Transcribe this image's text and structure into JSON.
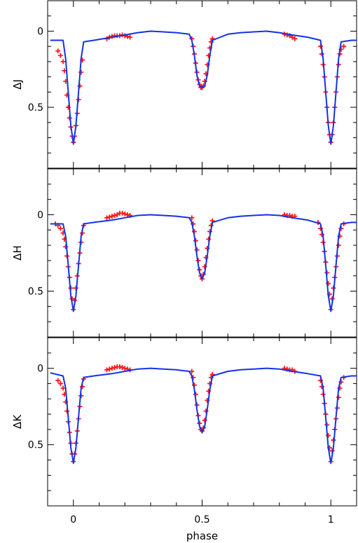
{
  "chart_data": [
    {
      "type": "line",
      "panel": "J",
      "ylabel": "ΔJ",
      "xlim": [
        -0.1,
        1.1
      ],
      "ylim": [
        0.9,
        -0.2
      ],
      "y_inverted": true,
      "yticks": [
        0,
        0.5
      ],
      "ytick_labels": [
        "0",
        "0.5"
      ],
      "minima": {
        "primary_depth": 0.74,
        "secondary_depth": 0.37
      },
      "model_color": "#1432e6",
      "data_color": "#ff1a1a",
      "series": [
        {
          "kind": "model-line",
          "x": [
            -0.09,
            -0.04,
            -0.03,
            -0.02,
            -0.01,
            0.0,
            0.01,
            0.02,
            0.03,
            0.04,
            0.08,
            0.15,
            0.2,
            0.25,
            0.3,
            0.35,
            0.4,
            0.45,
            0.46,
            0.47,
            0.48,
            0.49,
            0.5,
            0.51,
            0.52,
            0.53,
            0.54,
            0.6,
            0.65,
            0.7,
            0.75,
            0.8,
            0.85,
            0.91,
            0.96,
            0.97,
            0.98,
            0.99,
            1.0,
            1.01,
            1.02,
            1.03,
            1.04,
            1.08,
            1.1
          ],
          "y": [
            0.06,
            0.06,
            0.18,
            0.4,
            0.62,
            0.74,
            0.62,
            0.4,
            0.18,
            0.07,
            0.06,
            0.04,
            0.025,
            0.01,
            0.0,
            0.005,
            0.01,
            0.02,
            0.06,
            0.16,
            0.29,
            0.36,
            0.37,
            0.36,
            0.29,
            0.16,
            0.06,
            0.02,
            0.01,
            0.005,
            0.0,
            0.01,
            0.025,
            0.04,
            0.06,
            0.18,
            0.4,
            0.62,
            0.74,
            0.62,
            0.4,
            0.18,
            0.07,
            0.06,
            0.06
          ]
        },
        {
          "kind": "data-points",
          "x": [
            -0.06,
            -0.05,
            -0.04,
            -0.035,
            -0.03,
            -0.025,
            -0.02,
            -0.015,
            -0.01,
            -0.005,
            0.0,
            0.005,
            0.01,
            0.015,
            0.02,
            0.025,
            0.03,
            0.035,
            0.13,
            0.14,
            0.15,
            0.16,
            0.17,
            0.18,
            0.19,
            0.2,
            0.21,
            0.22,
            0.46,
            0.465,
            0.47,
            0.475,
            0.48,
            0.485,
            0.49,
            0.495,
            0.5,
            0.505,
            0.51,
            0.515,
            0.52,
            0.525,
            0.53,
            0.535,
            0.54,
            0.82,
            0.83,
            0.84,
            0.85,
            0.86,
            0.96,
            0.965,
            0.97,
            0.975,
            0.98,
            0.985,
            0.99,
            0.995,
            1.0,
            1.005,
            1.01,
            1.015,
            1.02,
            1.025,
            1.03,
            1.035,
            1.04,
            1.05
          ],
          "y": [
            0.13,
            0.16,
            0.2,
            0.26,
            0.33,
            0.42,
            0.5,
            0.57,
            0.63,
            0.69,
            0.73,
            0.69,
            0.62,
            0.54,
            0.45,
            0.36,
            0.27,
            0.19,
            0.05,
            0.04,
            0.035,
            0.03,
            0.03,
            0.03,
            0.025,
            0.03,
            0.035,
            0.04,
            0.05,
            0.1,
            0.15,
            0.21,
            0.27,
            0.32,
            0.35,
            0.37,
            0.37,
            0.36,
            0.33,
            0.28,
            0.22,
            0.16,
            0.11,
            0.07,
            0.05,
            0.02,
            0.025,
            0.03,
            0.04,
            0.05,
            0.1,
            0.15,
            0.22,
            0.3,
            0.4,
            0.5,
            0.6,
            0.68,
            0.73,
            0.68,
            0.6,
            0.5,
            0.4,
            0.3,
            0.22,
            0.15,
            0.12,
            0.1
          ]
        }
      ]
    },
    {
      "type": "line",
      "panel": "H",
      "ylabel": "ΔH",
      "xlim": [
        -0.1,
        1.1
      ],
      "ylim": [
        0.8,
        -0.3
      ],
      "y_inverted": true,
      "yticks": [
        0,
        0.5
      ],
      "ytick_labels": [
        "0",
        "0.5"
      ],
      "minima": {
        "primary_depth": 0.63,
        "secondary_depth": 0.42
      },
      "model_color": "#1432e6",
      "data_color": "#ff1a1a",
      "series": [
        {
          "kind": "model-line",
          "x": [
            -0.09,
            -0.04,
            -0.03,
            -0.02,
            -0.01,
            0.0,
            0.01,
            0.02,
            0.03,
            0.04,
            0.08,
            0.15,
            0.2,
            0.25,
            0.3,
            0.35,
            0.4,
            0.45,
            0.46,
            0.47,
            0.48,
            0.49,
            0.5,
            0.51,
            0.52,
            0.53,
            0.54,
            0.6,
            0.65,
            0.7,
            0.75,
            0.8,
            0.85,
            0.91,
            0.96,
            0.97,
            0.98,
            0.99,
            1.0,
            1.01,
            1.02,
            1.03,
            1.04,
            1.08,
            1.1
          ],
          "y": [
            0.06,
            0.06,
            0.14,
            0.33,
            0.53,
            0.63,
            0.53,
            0.33,
            0.14,
            0.06,
            0.05,
            0.035,
            0.02,
            0.005,
            0.0,
            0.005,
            0.01,
            0.02,
            0.05,
            0.14,
            0.27,
            0.38,
            0.42,
            0.38,
            0.27,
            0.14,
            0.05,
            0.02,
            0.01,
            0.005,
            0.0,
            0.005,
            0.02,
            0.035,
            0.06,
            0.14,
            0.33,
            0.53,
            0.63,
            0.53,
            0.33,
            0.14,
            0.06,
            0.05,
            0.05
          ]
        },
        {
          "kind": "data-points",
          "x": [
            -0.07,
            -0.06,
            -0.05,
            -0.04,
            -0.035,
            -0.03,
            -0.025,
            -0.02,
            -0.015,
            -0.01,
            -0.005,
            0.0,
            0.005,
            0.01,
            0.015,
            0.02,
            0.025,
            0.03,
            0.035,
            0.04,
            0.13,
            0.14,
            0.15,
            0.16,
            0.17,
            0.18,
            0.19,
            0.2,
            0.21,
            0.22,
            0.46,
            0.465,
            0.47,
            0.475,
            0.48,
            0.485,
            0.49,
            0.495,
            0.5,
            0.505,
            0.51,
            0.515,
            0.52,
            0.525,
            0.53,
            0.535,
            0.54,
            0.82,
            0.83,
            0.84,
            0.85,
            0.86,
            0.95,
            0.96,
            0.965,
            0.97,
            0.975,
            0.98,
            0.985,
            0.99,
            0.995,
            1.0,
            1.005,
            1.01,
            1.015,
            1.02,
            1.025,
            1.03,
            1.035,
            1.04,
            1.05
          ],
          "y": [
            0.06,
            0.07,
            0.09,
            0.12,
            0.16,
            0.21,
            0.27,
            0.34,
            0.41,
            0.48,
            0.55,
            0.62,
            0.56,
            0.48,
            0.4,
            0.32,
            0.25,
            0.18,
            0.12,
            0.07,
            0.02,
            0.015,
            0.01,
            0.005,
            0.0,
            -0.01,
            -0.01,
            -0.005,
            0.0,
            0.005,
            0.02,
            0.06,
            0.11,
            0.17,
            0.23,
            0.3,
            0.36,
            0.4,
            0.42,
            0.39,
            0.34,
            0.28,
            0.22,
            0.16,
            0.11,
            0.07,
            0.04,
            0.0,
            0.005,
            0.005,
            0.01,
            0.01,
            0.05,
            0.09,
            0.13,
            0.18,
            0.24,
            0.31,
            0.38,
            0.45,
            0.52,
            0.62,
            0.55,
            0.48,
            0.41,
            0.34,
            0.27,
            0.2,
            0.14,
            0.09,
            0.06
          ]
        }
      ]
    },
    {
      "type": "line",
      "panel": "K",
      "ylabel": "ΔK",
      "xlabel": "phase",
      "xlim": [
        -0.1,
        1.1
      ],
      "ylim": [
        0.9,
        -0.2
      ],
      "y_inverted": true,
      "xticks": [
        0,
        0.5,
        1
      ],
      "xtick_labels": [
        "0",
        "0.5",
        "1"
      ],
      "yticks": [
        0,
        0.5
      ],
      "ytick_labels": [
        "0",
        "0.5"
      ],
      "minima": {
        "primary_depth": 0.62,
        "secondary_depth": 0.42
      },
      "model_color": "#1432e6",
      "data_color": "#ff1a1a",
      "series": [
        {
          "kind": "model-line",
          "x": [
            -0.09,
            -0.04,
            -0.03,
            -0.02,
            -0.01,
            0.0,
            0.01,
            0.02,
            0.03,
            0.04,
            0.08,
            0.15,
            0.2,
            0.25,
            0.3,
            0.35,
            0.4,
            0.45,
            0.46,
            0.47,
            0.48,
            0.49,
            0.5,
            0.51,
            0.52,
            0.53,
            0.54,
            0.6,
            0.65,
            0.7,
            0.75,
            0.8,
            0.85,
            0.91,
            0.96,
            0.97,
            0.98,
            0.99,
            1.0,
            1.01,
            1.02,
            1.03,
            1.04,
            1.08,
            1.1
          ],
          "y": [
            0.03,
            0.05,
            0.13,
            0.32,
            0.52,
            0.62,
            0.52,
            0.32,
            0.13,
            0.06,
            0.05,
            0.035,
            0.02,
            0.005,
            0.0,
            0.005,
            0.01,
            0.02,
            0.05,
            0.14,
            0.27,
            0.38,
            0.42,
            0.38,
            0.27,
            0.14,
            0.05,
            0.02,
            0.01,
            0.005,
            0.0,
            0.005,
            0.02,
            0.035,
            0.05,
            0.13,
            0.32,
            0.52,
            0.62,
            0.52,
            0.32,
            0.13,
            0.06,
            0.05,
            0.05
          ]
        },
        {
          "kind": "data-points",
          "x": [
            -0.06,
            -0.05,
            -0.04,
            -0.035,
            -0.03,
            -0.025,
            -0.02,
            -0.015,
            -0.01,
            -0.005,
            0.0,
            0.005,
            0.01,
            0.015,
            0.02,
            0.025,
            0.03,
            0.035,
            0.04,
            0.13,
            0.14,
            0.15,
            0.16,
            0.17,
            0.18,
            0.19,
            0.2,
            0.21,
            0.22,
            0.46,
            0.465,
            0.47,
            0.475,
            0.48,
            0.485,
            0.49,
            0.495,
            0.5,
            0.505,
            0.51,
            0.515,
            0.52,
            0.525,
            0.53,
            0.535,
            0.54,
            0.82,
            0.83,
            0.84,
            0.85,
            0.86,
            0.96,
            0.965,
            0.97,
            0.975,
            0.98,
            0.985,
            0.99,
            0.995,
            1.0,
            1.005,
            1.01,
            1.015,
            1.02,
            1.025,
            1.03,
            1.035,
            1.04,
            1.05
          ],
          "y": [
            0.08,
            0.1,
            0.13,
            0.17,
            0.22,
            0.28,
            0.35,
            0.42,
            0.49,
            0.56,
            0.61,
            0.56,
            0.49,
            0.41,
            0.33,
            0.25,
            0.18,
            0.12,
            0.07,
            0.01,
            0.005,
            0.0,
            -0.005,
            -0.01,
            -0.01,
            -0.005,
            0.0,
            0.005,
            0.01,
            0.02,
            0.06,
            0.11,
            0.17,
            0.24,
            0.31,
            0.36,
            0.4,
            0.41,
            0.39,
            0.34,
            0.28,
            0.21,
            0.15,
            0.1,
            0.06,
            0.04,
            0.0,
            0.005,
            0.01,
            0.01,
            0.02,
            0.08,
            0.12,
            0.17,
            0.23,
            0.3,
            0.37,
            0.44,
            0.52,
            0.61,
            0.54,
            0.47,
            0.4,
            0.33,
            0.26,
            0.19,
            0.13,
            0.09,
            0.06
          ]
        }
      ]
    }
  ]
}
